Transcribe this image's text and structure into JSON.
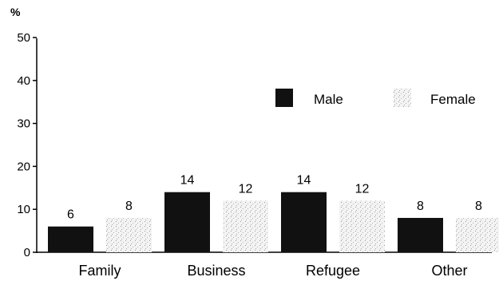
{
  "chart_data": {
    "type": "bar",
    "title": "",
    "xlabel": "",
    "ylabel": "%",
    "ylim": [
      0,
      50
    ],
    "yticks": [
      0,
      10,
      20,
      30,
      40,
      50
    ],
    "grid": false,
    "legend_position": "top-right",
    "categories": [
      "Family",
      "Business",
      "Refugee",
      "Other"
    ],
    "series": [
      {
        "name": "Male",
        "values": [
          6,
          14,
          14,
          8
        ],
        "color": "#111111"
      },
      {
        "name": "Female",
        "values": [
          8,
          12,
          12,
          8
        ],
        "color": "#f2f2f2"
      }
    ]
  }
}
